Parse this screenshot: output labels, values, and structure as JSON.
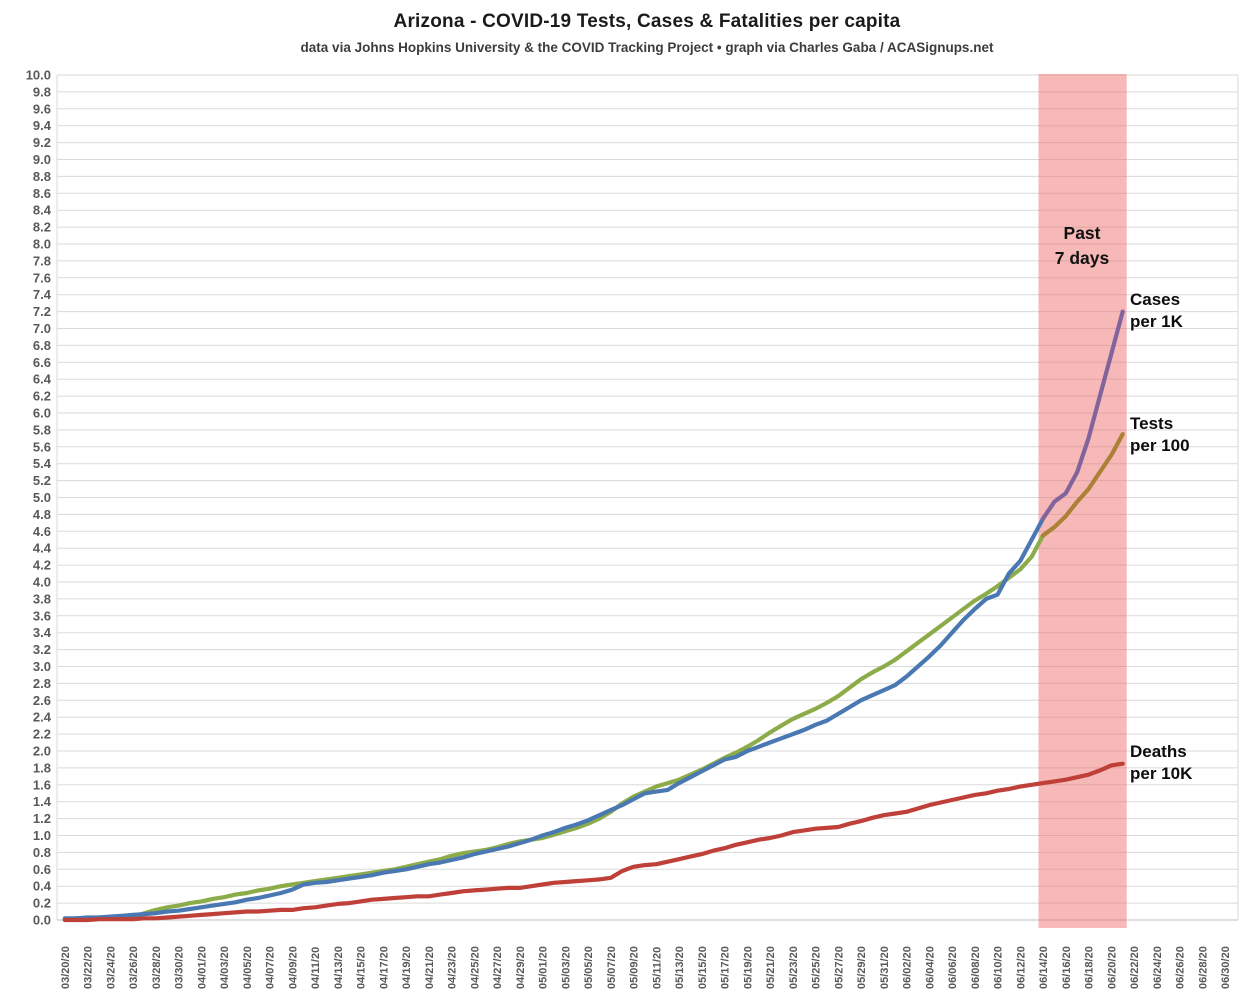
{
  "header": {
    "title": "Arizona - COVID-19 Tests, Cases & Fatalities per capita",
    "subtitle": "data via Johns Hopkins University & the COVID Tracking Project • graph via Charles Gaba / ACASignups.net"
  },
  "chart_data": {
    "type": "line",
    "title": "Arizona - COVID-19 Tests, Cases & Fatalities per capita",
    "xlabel": "",
    "ylabel": "",
    "ylim": [
      0,
      10
    ],
    "y_tick_step": 0.2,
    "grid": "horizontal",
    "legend_position": "inline-end-labels",
    "data_start_date": "03/20/20",
    "data_end_date": "06/21/20",
    "x_tick_labels": [
      "03/20/20",
      "03/22/20",
      "03/24/20",
      "03/26/20",
      "03/28/20",
      "03/30/20",
      "04/01/20",
      "04/03/20",
      "04/05/20",
      "04/07/20",
      "04/09/20",
      "04/11/20",
      "04/13/20",
      "04/15/20",
      "04/17/20",
      "04/19/20",
      "04/21/20",
      "04/23/20",
      "04/25/20",
      "04/27/20",
      "04/29/20",
      "05/01/20",
      "05/03/20",
      "05/05/20",
      "05/07/20",
      "05/09/20",
      "05/11/20",
      "05/13/20",
      "05/15/20",
      "05/17/20",
      "05/19/20",
      "05/21/20",
      "05/23/20",
      "05/25/20",
      "05/27/20",
      "05/29/20",
      "05/31/20",
      "06/02/20",
      "06/04/20",
      "06/06/20",
      "06/08/20",
      "06/10/20",
      "06/12/20",
      "06/14/20",
      "06/16/20",
      "06/18/20",
      "06/20/20",
      "06/22/20",
      "06/24/20",
      "06/26/20",
      "06/28/20",
      "06/30/20"
    ],
    "recent_start_index": 86,
    "highlight_band": {
      "label_lines": [
        "Past",
        "7 days"
      ],
      "from_date": "06/14/20",
      "to_date": "06/21/20",
      "fill": "#ef6a6a",
      "opacity": 0.48
    },
    "series": [
      {
        "name": "Tests per 100",
        "label_lines": [
          "Tests",
          "per 100"
        ],
        "color": "#8cab49",
        "recent_color": "#ab8136",
        "values": [
          0.01,
          0.02,
          0.02,
          0.03,
          0.03,
          0.04,
          0.04,
          0.08,
          0.12,
          0.15,
          0.17,
          0.2,
          0.22,
          0.25,
          0.27,
          0.3,
          0.32,
          0.35,
          0.37,
          0.4,
          0.42,
          0.44,
          0.46,
          0.48,
          0.5,
          0.52,
          0.54,
          0.56,
          0.58,
          0.6,
          0.63,
          0.66,
          0.69,
          0.72,
          0.76,
          0.79,
          0.81,
          0.83,
          0.86,
          0.9,
          0.93,
          0.95,
          0.97,
          1.01,
          1.05,
          1.09,
          1.14,
          1.2,
          1.28,
          1.38,
          1.46,
          1.52,
          1.58,
          1.62,
          1.66,
          1.72,
          1.78,
          1.85,
          1.92,
          1.98,
          2.05,
          2.13,
          2.22,
          2.3,
          2.38,
          2.44,
          2.5,
          2.57,
          2.65,
          2.75,
          2.85,
          2.93,
          3.0,
          3.08,
          3.18,
          3.28,
          3.38,
          3.48,
          3.58,
          3.68,
          3.78,
          3.86,
          3.95,
          4.05,
          4.15,
          4.3,
          4.55,
          4.65,
          4.78,
          4.95,
          5.1,
          5.3,
          5.5,
          5.75
        ]
      },
      {
        "name": "Cases per 1K",
        "label_lines": [
          "Cases",
          "per 1K"
        ],
        "color": "#4a78b2",
        "recent_color": "#82639c",
        "values": [
          0.02,
          0.02,
          0.03,
          0.03,
          0.04,
          0.05,
          0.06,
          0.07,
          0.08,
          0.1,
          0.11,
          0.13,
          0.15,
          0.17,
          0.19,
          0.21,
          0.24,
          0.26,
          0.29,
          0.32,
          0.36,
          0.42,
          0.44,
          0.45,
          0.47,
          0.49,
          0.51,
          0.53,
          0.56,
          0.58,
          0.6,
          0.63,
          0.66,
          0.68,
          0.71,
          0.74,
          0.78,
          0.81,
          0.84,
          0.87,
          0.91,
          0.95,
          1.0,
          1.04,
          1.09,
          1.13,
          1.18,
          1.24,
          1.3,
          1.36,
          1.43,
          1.5,
          1.52,
          1.54,
          1.62,
          1.69,
          1.76,
          1.83,
          1.9,
          1.93,
          2.0,
          2.05,
          2.1,
          2.15,
          2.2,
          2.25,
          2.31,
          2.36,
          2.44,
          2.52,
          2.6,
          2.66,
          2.72,
          2.78,
          2.88,
          3.0,
          3.12,
          3.25,
          3.4,
          3.55,
          3.68,
          3.8,
          3.85,
          4.1,
          4.25,
          4.5,
          4.75,
          4.95,
          5.05,
          5.3,
          5.7,
          6.2,
          6.7,
          7.2
        ]
      },
      {
        "name": "Deaths per 10K",
        "label_lines": [
          "Deaths",
          "per 10K"
        ],
        "color": "#bf4038",
        "recent_color": "#bf4038",
        "values": [
          0.0,
          0.0,
          0.0,
          0.01,
          0.01,
          0.01,
          0.01,
          0.02,
          0.02,
          0.03,
          0.04,
          0.05,
          0.06,
          0.07,
          0.08,
          0.09,
          0.1,
          0.1,
          0.11,
          0.12,
          0.12,
          0.14,
          0.15,
          0.17,
          0.19,
          0.2,
          0.22,
          0.24,
          0.25,
          0.26,
          0.27,
          0.28,
          0.28,
          0.3,
          0.32,
          0.34,
          0.35,
          0.36,
          0.37,
          0.38,
          0.38,
          0.4,
          0.42,
          0.44,
          0.45,
          0.46,
          0.47,
          0.48,
          0.5,
          0.58,
          0.63,
          0.65,
          0.66,
          0.69,
          0.72,
          0.75,
          0.78,
          0.82,
          0.85,
          0.89,
          0.92,
          0.95,
          0.97,
          1.0,
          1.04,
          1.06,
          1.08,
          1.09,
          1.1,
          1.14,
          1.17,
          1.21,
          1.24,
          1.26,
          1.28,
          1.32,
          1.36,
          1.39,
          1.42,
          1.45,
          1.48,
          1.5,
          1.53,
          1.55,
          1.58,
          1.6,
          1.62,
          1.64,
          1.66,
          1.69,
          1.72,
          1.77,
          1.83,
          1.85
        ]
      }
    ],
    "colors": {
      "gridline": "#dadada",
      "axis_line": "#bfbfbf",
      "tick_label": "#595959",
      "band_apparent": "#f9b1b1"
    }
  }
}
